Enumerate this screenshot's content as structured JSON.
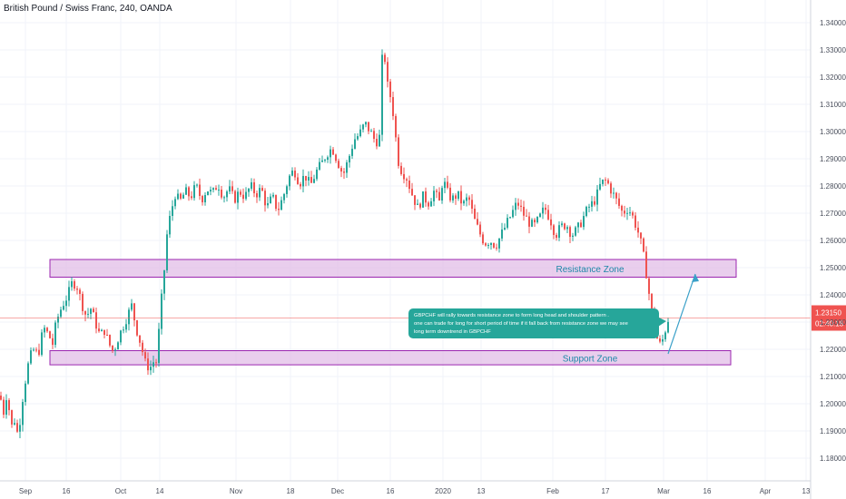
{
  "header": {
    "symbol_title": "British Pound / Swiss Franc, 240, OANDA"
  },
  "colors": {
    "up": "#26a69a",
    "down": "#ef5350",
    "zone_fill": "#e1bee7",
    "zone_border": "#9c27b0",
    "zone_text": "#1e88a8",
    "callout_bg": "#26a69a",
    "price_line": "#ef5350",
    "arrow": "#3aa0c8",
    "grid": "#f0f3fa",
    "axis_text": "#4a4f5c"
  },
  "chart_data": {
    "type": "candlestick",
    "title": "British Pound / Swiss Franc, 240, OANDA",
    "ylim": [
      1.175,
      1.345
    ],
    "y_ticks": [
      "1.34000",
      "1.33000",
      "1.32000",
      "1.31000",
      "1.30000",
      "1.29000",
      "1.28000",
      "1.27000",
      "1.26000",
      "1.25000",
      "1.24000",
      "1.23000",
      "1.22000",
      "1.21000",
      "1.20000",
      "1.19000",
      "1.18000"
    ],
    "x_ticks": [
      "Sep",
      "16",
      "Oct",
      "14",
      "Nov",
      "18",
      "Dec",
      "16",
      "2020",
      "13",
      "Feb",
      "17",
      "Mar",
      "16",
      "Apr",
      "13"
    ],
    "price_path": [
      [
        0,
        1.203
      ],
      [
        4,
        1.197
      ],
      [
        8,
        1.205
      ],
      [
        12,
        1.191
      ],
      [
        16,
        1.194
      ],
      [
        20,
        1.188
      ],
      [
        24,
        1.2
      ],
      [
        30,
        1.213
      ],
      [
        36,
        1.22
      ],
      [
        42,
        1.218
      ],
      [
        48,
        1.228
      ],
      [
        54,
        1.225
      ],
      [
        58,
        1.222
      ],
      [
        62,
        1.23
      ],
      [
        66,
        1.234
      ],
      [
        70,
        1.237
      ],
      [
        75,
        1.24
      ],
      [
        80,
        1.245
      ],
      [
        85,
        1.243
      ],
      [
        90,
        1.237
      ],
      [
        95,
        1.232
      ],
      [
        100,
        1.235
      ],
      [
        105,
        1.23
      ],
      [
        110,
        1.225
      ],
      [
        115,
        1.227
      ],
      [
        120,
        1.222
      ],
      [
        125,
        1.219
      ],
      [
        130,
        1.224
      ],
      [
        135,
        1.228
      ],
      [
        140,
        1.232
      ],
      [
        145,
        1.236
      ],
      [
        150,
        1.228
      ],
      [
        155,
        1.222
      ],
      [
        160,
        1.215
      ],
      [
        165,
        1.213
      ],
      [
        170,
        1.216
      ],
      [
        173,
        1.215
      ],
      [
        176,
        1.232
      ],
      [
        180,
        1.245
      ],
      [
        184,
        1.262
      ],
      [
        188,
        1.27
      ],
      [
        193,
        1.277
      ],
      [
        198,
        1.274
      ],
      [
        204,
        1.278
      ],
      [
        210,
        1.276
      ],
      [
        216,
        1.28
      ],
      [
        222,
        1.275
      ],
      [
        228,
        1.279
      ],
      [
        234,
        1.277
      ],
      [
        240,
        1.281
      ],
      [
        246,
        1.276
      ],
      [
        252,
        1.279
      ],
      [
        258,
        1.275
      ],
      [
        264,
        1.278
      ],
      [
        270,
        1.276
      ],
      [
        276,
        1.28
      ],
      [
        282,
        1.277
      ],
      [
        288,
        1.279
      ],
      [
        294,
        1.272
      ],
      [
        300,
        1.276
      ],
      [
        306,
        1.271
      ],
      [
        312,
        1.276
      ],
      [
        318,
        1.283
      ],
      [
        324,
        1.286
      ],
      [
        330,
        1.281
      ],
      [
        336,
        1.284
      ],
      [
        342,
        1.28
      ],
      [
        348,
        1.285
      ],
      [
        354,
        1.288
      ],
      [
        360,
        1.292
      ],
      [
        366,
        1.294
      ],
      [
        372,
        1.289
      ],
      [
        378,
        1.284
      ],
      [
        384,
        1.29
      ],
      [
        390,
        1.297
      ],
      [
        396,
        1.299
      ],
      [
        402,
        1.303
      ],
      [
        408,
        1.3
      ],
      [
        414,
        1.296
      ],
      [
        418,
        1.298
      ],
      [
        420,
        1.324
      ],
      [
        423,
        1.331
      ],
      [
        426,
        1.318
      ],
      [
        430,
        1.313
      ],
      [
        434,
        1.305
      ],
      [
        438,
        1.29
      ],
      [
        442,
        1.286
      ],
      [
        448,
        1.283
      ],
      [
        454,
        1.277
      ],
      [
        460,
        1.272
      ],
      [
        466,
        1.276
      ],
      [
        472,
        1.274
      ],
      [
        478,
        1.278
      ],
      [
        484,
        1.274
      ],
      [
        488,
        1.283
      ],
      [
        492,
        1.278
      ],
      [
        498,
        1.275
      ],
      [
        504,
        1.277
      ],
      [
        510,
        1.273
      ],
      [
        516,
        1.276
      ],
      [
        522,
        1.268
      ],
      [
        528,
        1.263
      ],
      [
        534,
        1.259
      ],
      [
        540,
        1.26
      ],
      [
        546,
        1.258
      ],
      [
        552,
        1.262
      ],
      [
        558,
        1.266
      ],
      [
        564,
        1.27
      ],
      [
        570,
        1.274
      ],
      [
        576,
        1.27
      ],
      [
        582,
        1.267
      ],
      [
        588,
        1.265
      ],
      [
        594,
        1.268
      ],
      [
        600,
        1.272
      ],
      [
        606,
        1.268
      ],
      [
        612,
        1.262
      ],
      [
        618,
        1.265
      ],
      [
        624,
        1.266
      ],
      [
        630,
        1.262
      ],
      [
        636,
        1.264
      ],
      [
        642,
        1.268
      ],
      [
        648,
        1.272
      ],
      [
        654,
        1.274
      ],
      [
        658,
        1.277
      ],
      [
        662,
        1.281
      ],
      [
        668,
        1.282
      ],
      [
        674,
        1.278
      ],
      [
        680,
        1.274
      ],
      [
        686,
        1.27
      ],
      [
        692,
        1.272
      ],
      [
        698,
        1.268
      ],
      [
        704,
        1.262
      ],
      [
        708,
        1.256
      ],
      [
        712,
        1.248
      ],
      [
        716,
        1.238
      ],
      [
        720,
        1.228
      ],
      [
        724,
        1.224
      ],
      [
        728,
        1.221
      ],
      [
        732,
        1.226
      ],
      [
        736,
        1.231
      ],
      [
        738,
        1.2315
      ]
    ],
    "current_price": "1.23150",
    "countdown": "02:40:18",
    "zones": [
      {
        "label": "Resistance Zone",
        "top": 1.253,
        "bottom": 1.2465
      },
      {
        "label": "Support Zone",
        "top": 1.2195,
        "bottom": 1.2143
      }
    ],
    "annotation": {
      "lines": [
        "GBPCHF will rally towards resistance zone to form long head and shoulder pattern .",
        "one can trade for  long for short period of time if it fall back from resistance zone we may see",
        "long term downtrend in GBPCHF"
      ]
    }
  }
}
